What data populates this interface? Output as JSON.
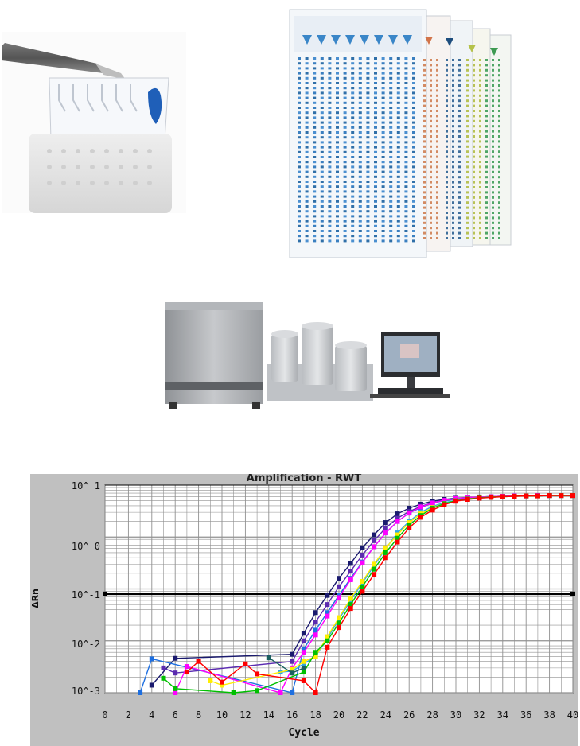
{
  "amplification_plot": {
    "title": "Amplification - RWT",
    "ylabel": "ΔRn",
    "xlabel": "Cycle",
    "y_tick_labels": [
      "10^ 1",
      "10^ 0",
      "10^-1",
      "10^-2",
      "10^-3"
    ],
    "x_tick_labels": [
      "0",
      "2",
      "4",
      "6",
      "8",
      "10",
      "12",
      "14",
      "16",
      "18",
      "20",
      "22",
      "24",
      "26",
      "28",
      "30",
      "32",
      "34",
      "36",
      "38",
      "40"
    ],
    "colors": {
      "background": "#c0c0c0",
      "plot_area": "#ffffff",
      "grid": "#909090",
      "threshold": "#000000"
    }
  },
  "chart_data": {
    "type": "scatter",
    "title": "Amplification - RWT",
    "xlabel": "Cycle",
    "ylabel": "ΔRn",
    "xlim": [
      0,
      40
    ],
    "ylim": [
      0.001,
      10
    ],
    "y_scale": "log",
    "grid": true,
    "threshold": 0.08,
    "series": [
      {
        "color": "#1a1a6e",
        "x": [
          4,
          6,
          16,
          17,
          18,
          19,
          20,
          21,
          22,
          23,
          24,
          25,
          26,
          27,
          28,
          29,
          30,
          31,
          32,
          33,
          34,
          35,
          36,
          37,
          38,
          39,
          40
        ],
        "y": [
          0.0014,
          0.0046,
          0.0055,
          0.014,
          0.035,
          0.075,
          0.16,
          0.31,
          0.62,
          1.1,
          1.9,
          2.8,
          3.6,
          4.3,
          4.9,
          5.3,
          5.6,
          5.8,
          5.9,
          6.0,
          6.1,
          6.2,
          6.2,
          6.3,
          6.3,
          6.3,
          6.3
        ]
      },
      {
        "color": "#5b2bb0",
        "x": [
          5,
          6,
          16,
          17,
          18,
          19,
          20,
          21,
          22,
          23,
          24,
          25,
          26,
          27,
          28,
          29,
          30,
          31,
          32,
          33,
          34,
          35,
          36,
          37,
          38,
          39,
          40
        ],
        "y": [
          0.003,
          0.0024,
          0.004,
          0.01,
          0.023,
          0.05,
          0.11,
          0.22,
          0.45,
          0.85,
          1.5,
          2.3,
          3.1,
          3.9,
          4.6,
          5.1,
          5.5,
          5.7,
          5.9,
          6.0,
          6.1,
          6.2,
          6.2,
          6.3,
          6.3,
          6.3,
          6.3
        ]
      },
      {
        "color": "#1e6fe0",
        "x": [
          3,
          4,
          16,
          17,
          18,
          19,
          20,
          21,
          22,
          23,
          24,
          25,
          26,
          27,
          28,
          29,
          30,
          31,
          32,
          33,
          34,
          35,
          36,
          37,
          38,
          39,
          40
        ],
        "y": [
          0.001,
          0.0045,
          0.001,
          0.007,
          0.016,
          0.035,
          0.075,
          0.16,
          0.33,
          0.65,
          1.2,
          2.0,
          2.9,
          3.7,
          4.5,
          5.0,
          5.4,
          5.7,
          5.9,
          6.0,
          6.1,
          6.2,
          6.2,
          6.3,
          6.3,
          6.3,
          6.3
        ]
      },
      {
        "color": "#2fa8e6",
        "x": [
          15,
          16,
          17,
          18,
          19,
          20,
          21,
          22,
          23,
          24,
          25,
          26,
          27,
          28,
          29,
          30,
          31,
          32,
          33,
          34,
          35,
          36,
          37,
          38,
          39,
          40
        ],
        "y": [
          0.0025,
          0.0026,
          0.0036,
          0.005,
          0.011,
          0.026,
          0.06,
          0.13,
          0.28,
          0.6,
          1.2,
          2.0,
          3.0,
          3.9,
          4.6,
          5.1,
          5.5,
          5.8,
          5.9,
          6.0,
          6.1,
          6.2,
          6.2,
          6.3,
          6.3,
          6.3
        ]
      },
      {
        "color": "#ff00ff",
        "x": [
          6,
          7,
          15,
          16,
          17,
          18,
          19,
          20,
          21,
          22,
          23,
          24,
          25,
          26,
          27,
          28,
          29,
          30,
          31,
          32,
          33,
          34,
          35,
          36,
          37,
          38,
          39,
          40
        ],
        "y": [
          0.001,
          0.0032,
          0.001,
          0.003,
          0.006,
          0.013,
          0.03,
          0.068,
          0.15,
          0.32,
          0.65,
          1.2,
          2.0,
          2.9,
          3.8,
          4.5,
          5.1,
          5.5,
          5.8,
          5.9,
          6.0,
          6.1,
          6.2,
          6.2,
          6.3,
          6.3,
          6.3,
          6.3
        ]
      },
      {
        "color": "#ffee00",
        "x": [
          9,
          10,
          16,
          17,
          18,
          19,
          20,
          21,
          22,
          23,
          24,
          25,
          26,
          27,
          28,
          29,
          30,
          31,
          32,
          33,
          34,
          35,
          36,
          37,
          38,
          39,
          40
        ],
        "y": [
          0.0017,
          0.0014,
          0.0028,
          0.004,
          0.005,
          0.012,
          0.028,
          0.065,
          0.14,
          0.3,
          0.62,
          1.1,
          1.9,
          2.8,
          3.7,
          4.4,
          5.0,
          5.4,
          5.7,
          5.9,
          6.0,
          6.1,
          6.2,
          6.2,
          6.3,
          6.3,
          6.3
        ]
      },
      {
        "color": "#00c000",
        "x": [
          5,
          6,
          11,
          13,
          17,
          18,
          19,
          20,
          21,
          22,
          23,
          24,
          25,
          26,
          27,
          28,
          29,
          30,
          31,
          32,
          33,
          34,
          35,
          36,
          37,
          38,
          39,
          40
        ],
        "y": [
          0.0019,
          0.0012,
          0.001,
          0.0011,
          0.0025,
          0.006,
          0.01,
          0.022,
          0.05,
          0.11,
          0.24,
          0.5,
          0.95,
          1.7,
          2.6,
          3.6,
          4.4,
          5.0,
          5.4,
          5.7,
          5.9,
          6.0,
          6.1,
          6.2,
          6.2,
          6.3,
          6.3,
          6.3
        ]
      },
      {
        "color": "#ff0000",
        "x": [
          7,
          8,
          10,
          12,
          13,
          17,
          18,
          19,
          20,
          21,
          22,
          23,
          24,
          25,
          26,
          27,
          28,
          29,
          30,
          31,
          32,
          33,
          34,
          35,
          36,
          37,
          38,
          39,
          40
        ],
        "y": [
          0.0025,
          0.004,
          0.0016,
          0.0036,
          0.0023,
          0.0017,
          0.001,
          0.0075,
          0.018,
          0.042,
          0.09,
          0.19,
          0.4,
          0.8,
          1.5,
          2.4,
          3.3,
          4.2,
          4.9,
          5.3,
          5.6,
          5.8,
          6.0,
          6.1,
          6.2,
          6.2,
          6.3,
          6.3,
          6.3
        ]
      },
      {
        "color": "#1a6060",
        "x": [
          14,
          16,
          17
        ],
        "y": [
          0.0047,
          0.0024,
          0.003
        ]
      }
    ]
  }
}
